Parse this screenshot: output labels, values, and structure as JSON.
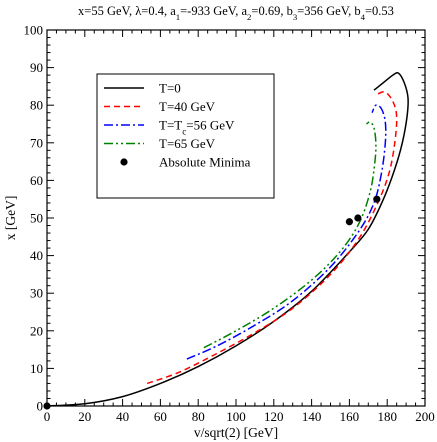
{
  "chart_data": {
    "type": "line",
    "title": "x=55 GeV, λ=0.4, a₁=-933 GeV, a₂=0.69, b₃=356 GeV, b₄=0.53",
    "title_parts": [
      {
        "t": "x=55 GeV, λ=0.4, a"
      },
      {
        "t": "1",
        "sub": true
      },
      {
        "t": "=-933 GeV, a"
      },
      {
        "t": "2",
        "sub": true
      },
      {
        "t": "=0.69, b"
      },
      {
        "t": "3",
        "sub": true
      },
      {
        "t": "=356 GeV, b"
      },
      {
        "t": "4",
        "sub": true
      },
      {
        "t": "=0.53"
      }
    ],
    "xlabel": "v/sqrt(2) [GeV]",
    "ylabel": "x [GeV]",
    "xlim": [
      0,
      200
    ],
    "ylim": [
      0,
      100
    ],
    "xticks": [
      0,
      20,
      40,
      60,
      80,
      100,
      120,
      140,
      160,
      180,
      200
    ],
    "yticks": [
      0,
      10,
      20,
      30,
      40,
      50,
      60,
      70,
      80,
      90,
      100
    ],
    "grid": false,
    "legend_position": "upper-left",
    "series": [
      {
        "name": "T=0",
        "legend_parts": [
          {
            "t": "T=0"
          }
        ],
        "color": "#000000",
        "dash": "solid",
        "points": [
          [
            0,
            0
          ],
          [
            20,
            0.6
          ],
          [
            40,
            2.5
          ],
          [
            60,
            6
          ],
          [
            80,
            10.5
          ],
          [
            100,
            16
          ],
          [
            120,
            22.5
          ],
          [
            140,
            30.5
          ],
          [
            160,
            41
          ],
          [
            170,
            47
          ],
          [
            178,
            55
          ],
          [
            184,
            63
          ],
          [
            188,
            70
          ],
          [
            190.5,
            77
          ],
          [
            191,
            82
          ],
          [
            189,
            86
          ],
          [
            186,
            88.5
          ],
          [
            183,
            88
          ],
          [
            178,
            86
          ],
          [
            173,
            84
          ]
        ]
      },
      {
        "name": "T=40 GeV",
        "legend_parts": [
          {
            "t": "T=40 GeV"
          }
        ],
        "color": "#ff0000",
        "dash": "6,4",
        "points": [
          [
            53,
            6
          ],
          [
            70,
            9
          ],
          [
            90,
            14
          ],
          [
            110,
            19.5
          ],
          [
            130,
            26
          ],
          [
            150,
            35
          ],
          [
            165,
            44.5
          ],
          [
            175,
            54
          ],
          [
            181,
            62
          ],
          [
            184,
            70
          ],
          [
            185,
            77
          ],
          [
            183,
            81
          ],
          [
            179,
            83.5
          ],
          [
            175,
            83
          ]
        ]
      },
      {
        "name": "T=T_c=56 GeV",
        "legend_parts": [
          {
            "t": "T=T"
          },
          {
            "t": "c",
            "sub": true
          },
          {
            "t": "=56 GeV"
          }
        ],
        "color": "#0000ff",
        "dash": "9,3,2,3",
        "points": [
          [
            74,
            12.5
          ],
          [
            90,
            16
          ],
          [
            110,
            21.5
          ],
          [
            130,
            28
          ],
          [
            150,
            37
          ],
          [
            165,
            46.5
          ],
          [
            173,
            54
          ],
          [
            177,
            62
          ],
          [
            179,
            70
          ],
          [
            179,
            75.5
          ],
          [
            177,
            79
          ],
          [
            174,
            80
          ],
          [
            172,
            78
          ]
        ]
      },
      {
        "name": "T=65 GeV",
        "legend_parts": [
          {
            "t": "T=65 GeV"
          }
        ],
        "color": "#008000",
        "dash": "9,3,2,3,2,3",
        "points": [
          [
            83,
            15.5
          ],
          [
            100,
            20
          ],
          [
            120,
            26
          ],
          [
            140,
            33.5
          ],
          [
            155,
            41
          ],
          [
            165,
            48.5
          ],
          [
            171,
            57
          ],
          [
            173.5,
            65
          ],
          [
            174,
            70
          ],
          [
            173,
            74
          ],
          [
            171,
            75.5
          ],
          [
            169,
            75
          ]
        ]
      }
    ],
    "markers": {
      "name": "Absolute Minima",
      "legend_parts": [
        {
          "t": "Absolute Minima"
        }
      ],
      "color": "#000000",
      "points": [
        [
          0,
          0
        ],
        [
          160,
          49
        ],
        [
          164.5,
          50
        ],
        [
          174.5,
          55
        ]
      ]
    }
  }
}
